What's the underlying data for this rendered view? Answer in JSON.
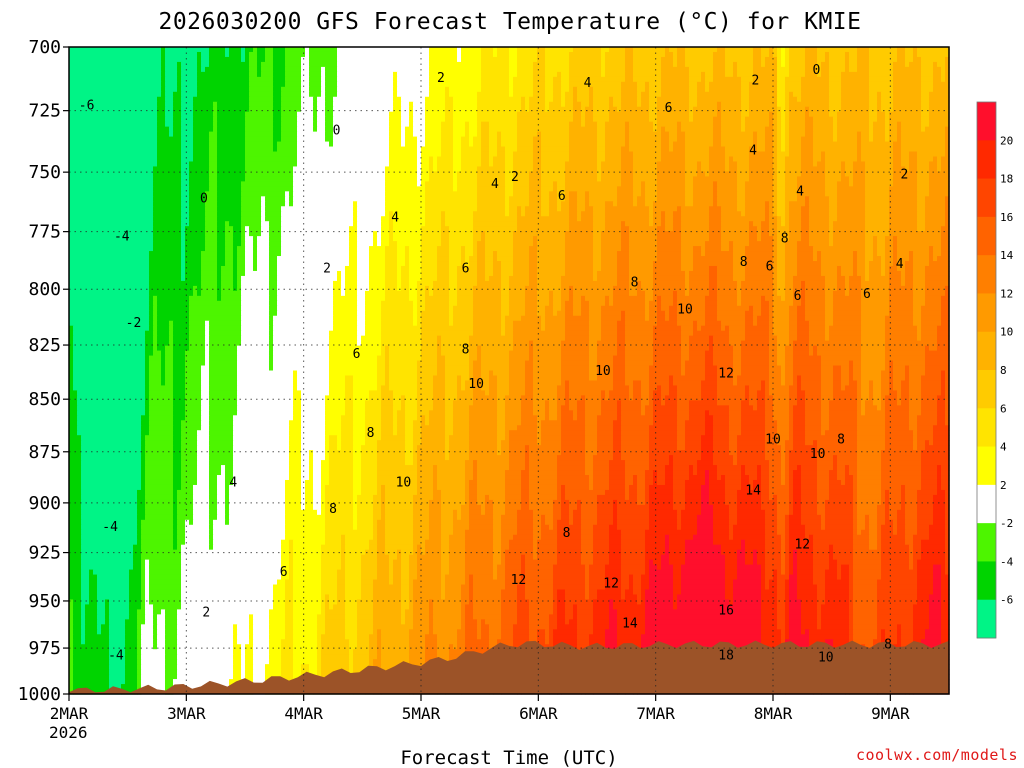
{
  "chart_data": {
    "type": "heatmap",
    "title": "2026030200 GFS Forecast Temperature (°C) for KMIE",
    "xlabel": "Forecast Time (UTC)",
    "ylabel": "",
    "credit": "coolwx.com/models",
    "x_ticks": [
      "2MAR",
      "3MAR",
      "4MAR",
      "5MAR",
      "6MAR",
      "7MAR",
      "8MAR",
      "9MAR"
    ],
    "x_year": "2026",
    "xlim_days": [
      2.0,
      9.5
    ],
    "y_ticks": [
      700,
      725,
      750,
      775,
      800,
      825,
      850,
      875,
      900,
      925,
      950,
      975,
      1000
    ],
    "ylim_hpa": [
      700,
      1000
    ],
    "y_scale": "log-pressure (inverted)",
    "grid": "dotted, on",
    "colorbar": {
      "placement": "right",
      "levels": [
        -8,
        -6,
        -4,
        -2,
        2,
        4,
        6,
        8,
        10,
        12,
        14,
        16,
        18,
        20,
        22
      ],
      "tick_labels": [
        "-6",
        "-4",
        "-2",
        "2",
        "4",
        "6",
        "8",
        "10",
        "12",
        "14",
        "16",
        "18",
        "20"
      ],
      "colors": [
        "#00f486",
        "#00d400",
        "#4df500",
        "#ffffff",
        "#ffff00",
        "#ffe400",
        "#ffcb00",
        "#ffb200",
        "#ff9a00",
        "#ff7f00",
        "#ff6300",
        "#ff4500",
        "#ff2900",
        "#ff0f2c"
      ]
    },
    "ground_color": "#9c5328",
    "contour_interval_c": 2,
    "day_ranges_c": [
      {
        "day": 2.0,
        "t850": -3.0,
        "t975": -5.0
      },
      {
        "day": 3.0,
        "t850": 1.0,
        "t975": 0.0
      },
      {
        "day": 4.0,
        "t850": 5.0,
        "t975": 6.0
      },
      {
        "day": 5.0,
        "t850": 9.0,
        "t975": 12.0
      },
      {
        "day": 6.0,
        "t850": 8.0,
        "t975": 13.0
      },
      {
        "day": 7.0,
        "t850": 11.0,
        "t975": 18.0
      },
      {
        "day": 8.0,
        "t850": 10.0,
        "t975": 16.0
      },
      {
        "day": 9.0,
        "t850": 8.0,
        "t975": 9.0
      }
    ],
    "contour_labels": [
      {
        "text": "-6",
        "day": 2.15,
        "p": 723
      },
      {
        "text": "-4",
        "day": 2.45,
        "p": 777
      },
      {
        "text": "-2",
        "day": 2.55,
        "p": 815
      },
      {
        "text": "-4",
        "day": 2.35,
        "p": 912
      },
      {
        "text": "-4",
        "day": 2.4,
        "p": 979
      },
      {
        "text": "0",
        "day": 3.15,
        "p": 761
      },
      {
        "text": "2",
        "day": 3.17,
        "p": 956
      },
      {
        "text": "4",
        "day": 3.4,
        "p": 890
      },
      {
        "text": "6",
        "day": 3.83,
        "p": 935
      },
      {
        "text": "2",
        "day": 4.2,
        "p": 791
      },
      {
        "text": "6",
        "day": 4.45,
        "p": 829
      },
      {
        "text": "8",
        "day": 4.57,
        "p": 866
      },
      {
        "text": "8",
        "day": 4.25,
        "p": 903
      },
      {
        "text": "0",
        "day": 4.28,
        "p": 733
      },
      {
        "text": "2",
        "day": 5.17,
        "p": 712
      },
      {
        "text": "4",
        "day": 4.78,
        "p": 769
      },
      {
        "text": "6",
        "day": 5.38,
        "p": 791
      },
      {
        "text": "8",
        "day": 5.38,
        "p": 827
      },
      {
        "text": "10",
        "day": 5.47,
        "p": 843
      },
      {
        "text": "10",
        "day": 4.85,
        "p": 890
      },
      {
        "text": "4",
        "day": 5.63,
        "p": 755
      },
      {
        "text": "2",
        "day": 5.8,
        "p": 752
      },
      {
        "text": "6",
        "day": 6.2,
        "p": 760
      },
      {
        "text": "8",
        "day": 6.82,
        "p": 797
      },
      {
        "text": "10",
        "day": 6.55,
        "p": 837
      },
      {
        "text": "10",
        "day": 7.25,
        "p": 809
      },
      {
        "text": "12",
        "day": 7.6,
        "p": 838
      },
      {
        "text": "8",
        "day": 6.24,
        "p": 915
      },
      {
        "text": "12",
        "day": 5.83,
        "p": 939
      },
      {
        "text": "12",
        "day": 6.62,
        "p": 941
      },
      {
        "text": "14",
        "day": 6.78,
        "p": 962
      },
      {
        "text": "16",
        "day": 7.6,
        "p": 955
      },
      {
        "text": "18",
        "day": 7.6,
        "p": 979
      },
      {
        "text": "14",
        "day": 7.83,
        "p": 894
      },
      {
        "text": "12",
        "day": 8.25,
        "p": 921
      },
      {
        "text": "10",
        "day": 8.0,
        "p": 869
      },
      {
        "text": "10",
        "day": 8.38,
        "p": 876
      },
      {
        "text": "10",
        "day": 8.45,
        "p": 980
      },
      {
        "text": "8",
        "day": 8.58,
        "p": 869
      },
      {
        "text": "8",
        "day": 8.98,
        "p": 973
      },
      {
        "text": "4",
        "day": 6.42,
        "p": 714
      },
      {
        "text": "6",
        "day": 7.11,
        "p": 724
      },
      {
        "text": "2",
        "day": 7.85,
        "p": 713
      },
      {
        "text": "0",
        "day": 8.37,
        "p": 709
      },
      {
        "text": "4",
        "day": 7.83,
        "p": 741
      },
      {
        "text": "4",
        "day": 8.23,
        "p": 758
      },
      {
        "text": "8",
        "day": 8.1,
        "p": 778
      },
      {
        "text": "8",
        "day": 7.75,
        "p": 788
      },
      {
        "text": "6",
        "day": 7.97,
        "p": 790
      },
      {
        "text": "6",
        "day": 8.21,
        "p": 803
      },
      {
        "text": "6",
        "day": 8.8,
        "p": 802
      },
      {
        "text": "4",
        "day": 9.08,
        "p": 789
      },
      {
        "text": "2",
        "day": 9.12,
        "p": 751
      }
    ]
  }
}
